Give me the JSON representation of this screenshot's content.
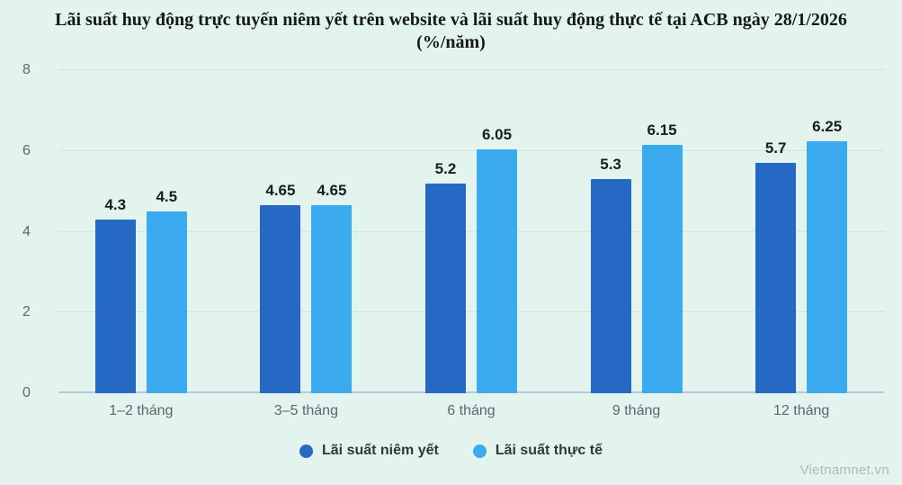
{
  "title": "Lãi suất huy động trực tuyến niêm yết trên website và lãi suất huy động thực tế tại ACB ngày 28/1/2026 (%/năm)",
  "watermark": "Vietnamnet.vn",
  "colors": {
    "background": "#e3f4ee",
    "series_listed": "#2569c4",
    "series_actual": "#3caaef",
    "gridline": "#d3e4de",
    "axis_line": "#b7c8d8",
    "tick_text": "#5b6770"
  },
  "chart_data": {
    "type": "bar",
    "title": "Lãi suất huy động trực tuyến niêm yết trên website và lãi suất huy động thực tế tại ACB ngày 28/1/2026 (%/năm)",
    "categories": [
      "1–2 tháng",
      "3–5 tháng",
      "6 tháng",
      "9 tháng",
      "12 tháng"
    ],
    "series": [
      {
        "name": "Lãi suất niêm yết",
        "color": "#2569c4",
        "values": [
          4.3,
          4.65,
          5.2,
          5.3,
          5.7
        ]
      },
      {
        "name": "Lãi suất thực tế",
        "color": "#3caaef",
        "values": [
          4.5,
          4.65,
          6.05,
          6.15,
          6.25
        ]
      }
    ],
    "xlabel": "",
    "ylabel": "",
    "ylim": [
      0,
      8
    ],
    "yticks": [
      0,
      2,
      4,
      6,
      8
    ],
    "grid": true,
    "legend_position": "bottom"
  }
}
